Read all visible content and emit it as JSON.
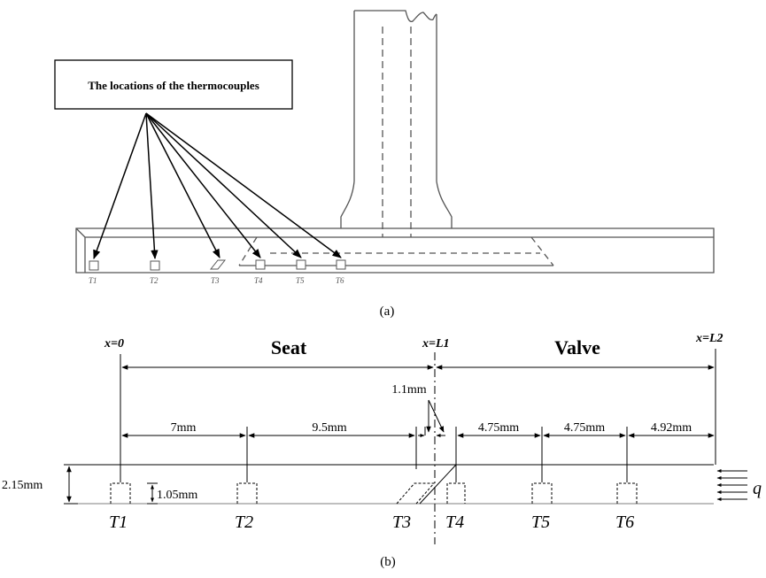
{
  "figure_a": {
    "callout_label": "The locations of the thermocouples",
    "tc_labels": [
      "T1",
      "T2",
      "T3",
      "T4",
      "T5",
      "T6"
    ],
    "caption": "(a)"
  },
  "figure_b": {
    "caption": "(b)",
    "region_labels": {
      "seat": "Seat",
      "valve": "Valve"
    },
    "x_labels": {
      "x0": "x=0",
      "xL1": "x=L1",
      "xL2": "x=L2"
    },
    "dimensions": {
      "d_t1_t2": "7mm",
      "d_t2_t3": "9.5mm",
      "d_gap": "1.1mm",
      "d_t4_t5": "4.75mm",
      "d_t5_t6": "4.75mm",
      "d_t6_end": "4.92mm",
      "thickness": "2.15mm",
      "depth": "1.05mm"
    },
    "tc_labels": [
      "T1",
      "T2",
      "T3",
      "T4",
      "T5",
      "T6"
    ],
    "heat_flux_label": "q"
  }
}
